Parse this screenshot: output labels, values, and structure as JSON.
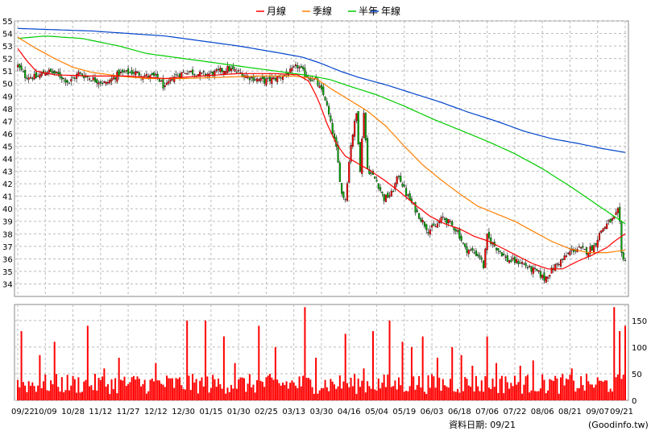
{
  "chart_data": {
    "type": "line",
    "legend_placement": "top-center",
    "legend": [
      {
        "name": "月線",
        "color": "#ff0000"
      },
      {
        "name": "季線",
        "color": "#ff7f00"
      },
      {
        "name": "半年",
        "color": "#00cc00"
      },
      {
        "name": "年線",
        "color": "#0044cc"
      }
    ],
    "x_tick_labels": [
      "09/22",
      "10/09",
      "10/28",
      "11/12",
      "11/27",
      "12/12",
      "12/30",
      "01/15",
      "01/30",
      "02/25",
      "03/13",
      "03/30",
      "04/16",
      "05/04",
      "05/19",
      "06/03",
      "06/18",
      "07/06",
      "07/22",
      "08/06",
      "08/21",
      "09/07",
      "09/21"
    ],
    "price_axis": {
      "ylim": [
        33,
        55
      ],
      "ticks": [
        34,
        35,
        36,
        37,
        38,
        39,
        40,
        41,
        42,
        43,
        44,
        45,
        46,
        47,
        48,
        49,
        50,
        51,
        52,
        53,
        54,
        55
      ],
      "grid": true
    },
    "volume_axis": {
      "ylim": [
        0,
        180
      ],
      "ticks": [
        0,
        50,
        100,
        150
      ],
      "grid": true
    },
    "candle_colors": {
      "up": "#ff0000",
      "down": "#00aa00"
    },
    "volume_color": "#ff0000",
    "price_anchors": [
      [
        0,
        51.4
      ],
      [
        4,
        50.6
      ],
      [
        10,
        50.5
      ],
      [
        16,
        51.0
      ],
      [
        22,
        50.7
      ],
      [
        28,
        50.1
      ],
      [
        33,
        50.8
      ],
      [
        40,
        50.4
      ],
      [
        48,
        50.0
      ],
      [
        55,
        50.8
      ],
      [
        63,
        50.9
      ],
      [
        70,
        50.6
      ],
      [
        76,
        50.5
      ],
      [
        80,
        49.6
      ],
      [
        84,
        50.5
      ],
      [
        92,
        51.0
      ],
      [
        100,
        50.7
      ],
      [
        106,
        50.8
      ],
      [
        114,
        51.2
      ],
      [
        120,
        50.9
      ],
      [
        126,
        50.5
      ],
      [
        134,
        50.2
      ],
      [
        140,
        50.4
      ],
      [
        147,
        50.8
      ],
      [
        152,
        51.4
      ],
      [
        157,
        50.6
      ],
      [
        162,
        50.2
      ],
      [
        167,
        48.8
      ],
      [
        170,
        46.8
      ],
      [
        173,
        44.8
      ],
      [
        176,
        41.2
      ],
      [
        178,
        40.8
      ],
      [
        181,
        45.2
      ],
      [
        184,
        47.6
      ],
      [
        186,
        43.2
      ],
      [
        188,
        47.8
      ],
      [
        190,
        43.2
      ],
      [
        195,
        42.2
      ],
      [
        199,
        40.8
      ],
      [
        203,
        41.2
      ],
      [
        207,
        42.7
      ],
      [
        211,
        41.2
      ],
      [
        215,
        40.2
      ],
      [
        219,
        39.2
      ],
      [
        223,
        38.3
      ],
      [
        227,
        38.6
      ],
      [
        231,
        39.3
      ],
      [
        235,
        38.8
      ],
      [
        239,
        38.2
      ],
      [
        243,
        36.8
      ],
      [
        247,
        36.6
      ],
      [
        251,
        36.2
      ],
      [
        253,
        35.4
      ],
      [
        255,
        37.8
      ],
      [
        258,
        37.2
      ],
      [
        262,
        36.6
      ],
      [
        266,
        35.9
      ],
      [
        270,
        35.8
      ],
      [
        274,
        35.7
      ],
      [
        278,
        35.2
      ],
      [
        282,
        35.0
      ],
      [
        286,
        34.4
      ],
      [
        289,
        34.9
      ],
      [
        293,
        35.6
      ],
      [
        297,
        36.1
      ],
      [
        301,
        36.7
      ],
      [
        305,
        36.8
      ],
      [
        309,
        36.6
      ],
      [
        313,
        37.0
      ],
      [
        317,
        38.3
      ],
      [
        321,
        38.9
      ],
      [
        324,
        39.2
      ],
      [
        326,
        39.8
      ],
      [
        327,
        38.8
      ],
      [
        328,
        36.4
      ],
      [
        330,
        35.9
      ]
    ],
    "month_line": [
      [
        0,
        52.8
      ],
      [
        5,
        51.8
      ],
      [
        10,
        51.0
      ],
      [
        20,
        50.7
      ],
      [
        40,
        50.6
      ],
      [
        60,
        50.6
      ],
      [
        80,
        50.4
      ],
      [
        100,
        50.6
      ],
      [
        120,
        50.8
      ],
      [
        140,
        50.8
      ],
      [
        152,
        50.7
      ],
      [
        158,
        50.2
      ],
      [
        163,
        48.8
      ],
      [
        168,
        46.8
      ],
      [
        173,
        45.2
      ],
      [
        178,
        44.2
      ],
      [
        185,
        43.6
      ],
      [
        192,
        43.0
      ],
      [
        200,
        42.2
      ],
      [
        208,
        41.3
      ],
      [
        216,
        40.3
      ],
      [
        224,
        39.4
      ],
      [
        232,
        38.8
      ],
      [
        240,
        38.4
      ],
      [
        248,
        37.8
      ],
      [
        256,
        37.4
      ],
      [
        264,
        36.8
      ],
      [
        272,
        36.2
      ],
      [
        280,
        35.6
      ],
      [
        288,
        35.2
      ],
      [
        296,
        35.2
      ],
      [
        304,
        35.8
      ],
      [
        312,
        36.3
      ],
      [
        320,
        36.9
      ],
      [
        325,
        37.5
      ],
      [
        330,
        38.0
      ]
    ],
    "quarter_line": [
      [
        0,
        53.7
      ],
      [
        10,
        52.8
      ],
      [
        20,
        52.0
      ],
      [
        30,
        51.3
      ],
      [
        40,
        50.9
      ],
      [
        55,
        50.6
      ],
      [
        70,
        50.4
      ],
      [
        90,
        50.4
      ],
      [
        110,
        50.5
      ],
      [
        130,
        50.6
      ],
      [
        150,
        50.6
      ],
      [
        162,
        50.4
      ],
      [
        170,
        49.6
      ],
      [
        180,
        48.7
      ],
      [
        190,
        47.8
      ],
      [
        200,
        46.6
      ],
      [
        210,
        45.0
      ],
      [
        220,
        43.5
      ],
      [
        230,
        42.3
      ],
      [
        240,
        41.2
      ],
      [
        250,
        40.2
      ],
      [
        260,
        39.6
      ],
      [
        270,
        39.0
      ],
      [
        280,
        38.2
      ],
      [
        290,
        37.4
      ],
      [
        300,
        36.8
      ],
      [
        310,
        36.5
      ],
      [
        320,
        36.5
      ],
      [
        330,
        36.7
      ]
    ],
    "halfyear_line": [
      [
        0,
        53.6
      ],
      [
        15,
        53.8
      ],
      [
        35,
        53.6
      ],
      [
        55,
        53.0
      ],
      [
        70,
        52.4
      ],
      [
        90,
        52.0
      ],
      [
        110,
        51.6
      ],
      [
        125,
        51.3
      ],
      [
        140,
        51.0
      ],
      [
        150,
        50.8
      ],
      [
        160,
        50.6
      ],
      [
        170,
        50.3
      ],
      [
        180,
        49.8
      ],
      [
        195,
        49.1
      ],
      [
        210,
        48.2
      ],
      [
        225,
        47.2
      ],
      [
        240,
        46.3
      ],
      [
        255,
        45.4
      ],
      [
        270,
        44.4
      ],
      [
        285,
        43.2
      ],
      [
        300,
        41.8
      ],
      [
        312,
        40.6
      ],
      [
        322,
        39.6
      ],
      [
        330,
        38.8
      ]
    ],
    "year_line": [
      [
        0,
        54.4
      ],
      [
        20,
        54.3
      ],
      [
        40,
        54.2
      ],
      [
        60,
        54.0
      ],
      [
        80,
        53.8
      ],
      [
        100,
        53.4
      ],
      [
        120,
        53.0
      ],
      [
        140,
        52.5
      ],
      [
        155,
        52.1
      ],
      [
        165,
        51.6
      ],
      [
        175,
        51.0
      ],
      [
        185,
        50.5
      ],
      [
        200,
        49.9
      ],
      [
        215,
        49.2
      ],
      [
        230,
        48.5
      ],
      [
        245,
        47.7
      ],
      [
        260,
        47.0
      ],
      [
        275,
        46.2
      ],
      [
        290,
        45.6
      ],
      [
        305,
        45.2
      ],
      [
        318,
        44.8
      ],
      [
        330,
        44.5
      ]
    ],
    "volume_spikes": [
      [
        2,
        130
      ],
      [
        12,
        85
      ],
      [
        20,
        110
      ],
      [
        38,
        140
      ],
      [
        47,
        60
      ],
      [
        55,
        80
      ],
      [
        65,
        45
      ],
      [
        75,
        70
      ],
      [
        92,
        150
      ],
      [
        102,
        150
      ],
      [
        112,
        120
      ],
      [
        118,
        70
      ],
      [
        131,
        140
      ],
      [
        140,
        100
      ],
      [
        156,
        175
      ],
      [
        162,
        80
      ],
      [
        178,
        125
      ],
      [
        188,
        60
      ],
      [
        193,
        130
      ],
      [
        202,
        150
      ],
      [
        209,
        110
      ],
      [
        214,
        100
      ],
      [
        220,
        120
      ],
      [
        228,
        80
      ],
      [
        236,
        100
      ],
      [
        241,
        85
      ],
      [
        247,
        65
      ],
      [
        255,
        120
      ],
      [
        260,
        70
      ],
      [
        265,
        45
      ],
      [
        273,
        65
      ],
      [
        280,
        75
      ],
      [
        289,
        40
      ],
      [
        301,
        60
      ],
      [
        311,
        30
      ],
      [
        318,
        35
      ],
      [
        324,
        175
      ],
      [
        327,
        130
      ],
      [
        330,
        140
      ]
    ]
  },
  "footer": {
    "date_label": "資料日期: 09/21",
    "source": "(Goodinfo.tw)"
  }
}
